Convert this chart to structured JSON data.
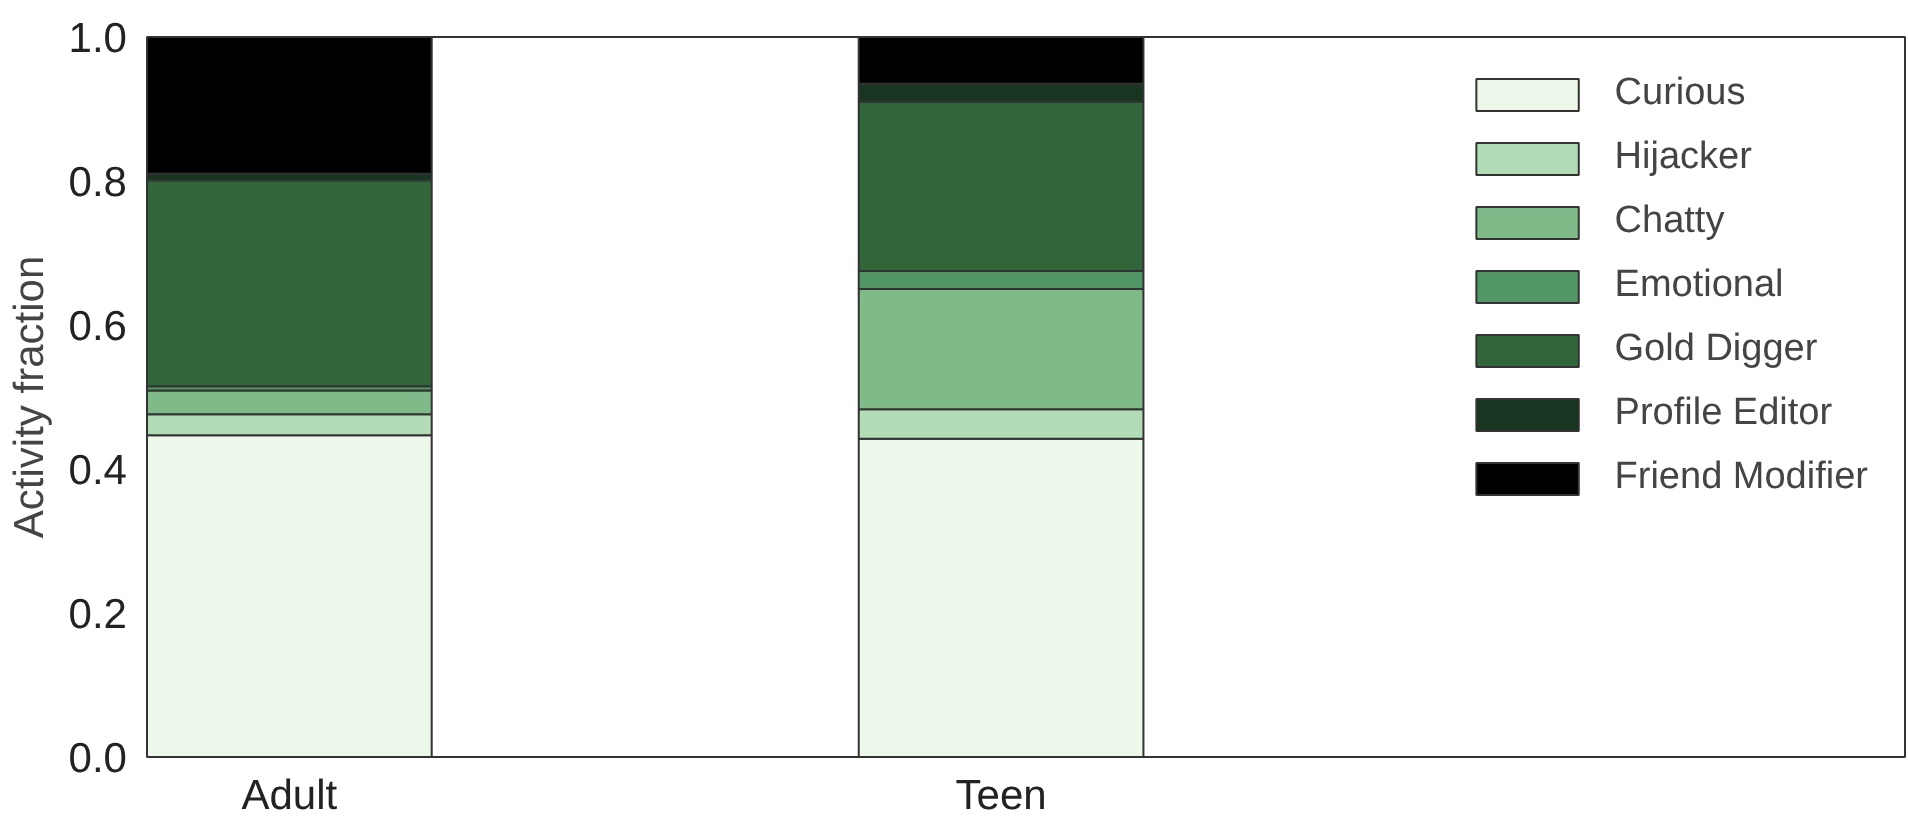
{
  "chart_data": {
    "type": "bar",
    "stacked": true,
    "ylabel": "Activity fraction",
    "categories": [
      "Adult",
      "Teen",
      null
    ],
    "series": [
      {
        "name": "Curious",
        "color": "#edf8ea",
        "values": [
          0.447,
          0.442,
          0
        ]
      },
      {
        "name": "Hijacker",
        "color": "#b2dcb5",
        "values": [
          0.029,
          0.041,
          0
        ]
      },
      {
        "name": "Chatty",
        "color": "#7fba88",
        "values": [
          0.033,
          0.167,
          0
        ]
      },
      {
        "name": "Emotional",
        "color": "#519765",
        "values": [
          0.006,
          0.025,
          0
        ]
      },
      {
        "name": "Gold Digger",
        "color": "#31663a",
        "values": [
          0.286,
          0.235,
          0
        ]
      },
      {
        "name": "Profile Editor",
        "color": "#173520",
        "values": [
          0.009,
          0.025,
          0
        ]
      },
      {
        "name": "Friend Modifier",
        "color": "#000000",
        "values": [
          0.19,
          0.065,
          0
        ]
      }
    ],
    "ylim": [
      0,
      1
    ],
    "yticks": [
      {
        "value": 0,
        "label": "0.0"
      },
      {
        "value": 0.2,
        "label": "0.2"
      },
      {
        "value": 0.4,
        "label": "0.4"
      },
      {
        "value": 0.6,
        "label": "0.6"
      },
      {
        "value": 0.8,
        "label": "0.8"
      },
      {
        "value": 1,
        "label": "1.0"
      }
    ],
    "grid": false,
    "legend": "top right"
  }
}
